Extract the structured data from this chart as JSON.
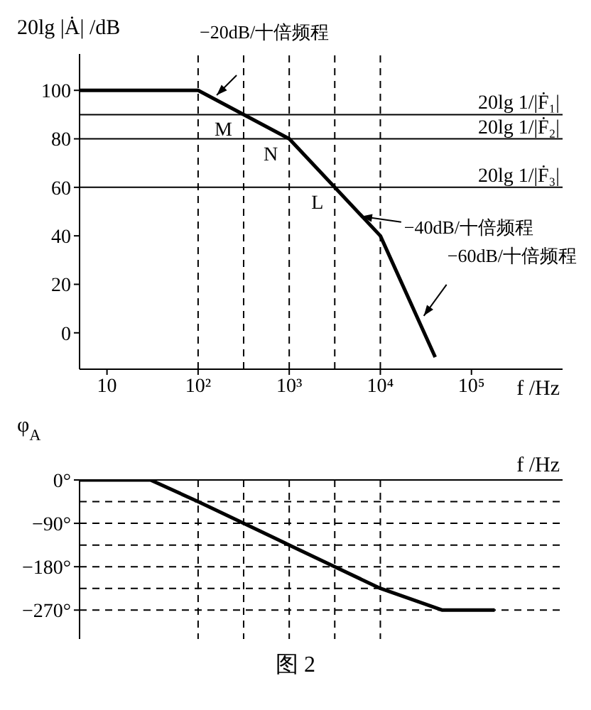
{
  "chart_data": [
    {
      "type": "line",
      "ylabel": "20lg |Ȧ| /dB",
      "xlabel": "f /Hz",
      "log": "x",
      "xlim": [
        5,
        1000000
      ],
      "xticks": [
        10,
        {
          "value": 100,
          "label": "10²"
        },
        {
          "value": 1000,
          "label": "10³"
        },
        {
          "value": 10000,
          "label": "10⁴"
        },
        {
          "value": 100000,
          "label": "10⁵"
        }
      ],
      "ylim": [
        -15,
        115
      ],
      "yticks": [
        0,
        20,
        40,
        60,
        80,
        100
      ],
      "x": [
        5,
        100,
        1000,
        10000,
        40000
      ],
      "series": [
        {
          "color": "#000000",
          "values": [
            100,
            100,
            80,
            40,
            -10
          ]
        }
      ],
      "ref_lines": [
        {
          "axis": "y",
          "value": 90,
          "label": "20lg 1/|Ḟ₁|",
          "color": "#000000",
          "line_style": "solid"
        },
        {
          "axis": "y",
          "value": 80,
          "label": "20lg 1/|Ḟ₂|",
          "color": "#000000",
          "line_style": "solid"
        },
        {
          "axis": "y",
          "value": 60,
          "label": "20lg 1/|Ḟ₃|",
          "color": "#000000",
          "line_style": "solid"
        },
        {
          "axis": "x",
          "value": 100,
          "color": "#000000",
          "line_style": "dashed"
        },
        {
          "axis": "x",
          "value": 316,
          "color": "#000000",
          "line_style": "dashed"
        },
        {
          "axis": "x",
          "value": 1000,
          "color": "#000000",
          "line_style": "dashed"
        },
        {
          "axis": "x",
          "value": 3160,
          "color": "#000000",
          "line_style": "dashed"
        },
        {
          "axis": "x",
          "value": 10000,
          "color": "#000000",
          "line_style": "dashed"
        }
      ],
      "annotations": [
        {
          "text": "−20dB/十倍频程",
          "x": 160,
          "y": 98
        },
        {
          "text": "−40dB/十倍频程",
          "x": 6200,
          "y": 48
        },
        {
          "text": "−60dB/十倍频程",
          "x": 30000,
          "y": 7
        },
        {
          "text": "M",
          "x": 316,
          "y": 90
        },
        {
          "text": "N",
          "x": 1000,
          "y": 80
        },
        {
          "text": "L",
          "x": 3160,
          "y": 60
        }
      ]
    },
    {
      "type": "line",
      "ylabel": "φ$_{A}$",
      "xlabel": "f /Hz",
      "log": "x",
      "tick_labels": "y",
      "xlim": [
        5,
        1000000
      ],
      "ylim": [
        -330,
        0
      ],
      "yticks": [
        {
          "value": 0,
          "label": "0°"
        },
        {
          "value": -90,
          "label": "−90°"
        },
        {
          "value": -180,
          "label": "−180°"
        },
        {
          "value": -270,
          "label": "−270°"
        }
      ],
      "x": [
        5,
        30,
        100,
        316,
        1000,
        3160,
        10000,
        48000,
        180000
      ],
      "series": [
        {
          "color": "#000000",
          "values": [
            0,
            0,
            -45,
            -90,
            -135,
            -180,
            -225,
            -270,
            -270
          ]
        }
      ],
      "ref_lines": [
        {
          "axis": "x",
          "value": 100,
          "color": "#000000",
          "line_style": "dashed"
        },
        {
          "axis": "x",
          "value": 316,
          "color": "#000000",
          "line_style": "dashed"
        },
        {
          "axis": "x",
          "value": 1000,
          "color": "#000000",
          "line_style": "dashed"
        },
        {
          "axis": "x",
          "value": 3160,
          "color": "#000000",
          "line_style": "dashed"
        },
        {
          "axis": "x",
          "value": 10000,
          "color": "#000000",
          "line_style": "dashed"
        },
        {
          "axis": "y",
          "value": -45,
          "color": "#000000",
          "line_style": "dashed"
        },
        {
          "axis": "y",
          "value": -90,
          "color": "#000000",
          "line_style": "dashed"
        },
        {
          "axis": "y",
          "value": -135,
          "color": "#000000",
          "line_style": "dashed"
        },
        {
          "axis": "y",
          "value": -180,
          "color": "#000000",
          "line_style": "dashed"
        },
        {
          "axis": "y",
          "value": -225,
          "color": "#000000",
          "line_style": "dashed"
        },
        {
          "axis": "y",
          "value": -270,
          "color": "#000000",
          "line_style": "dashed"
        }
      ],
      "annotations": [
        "图 2"
      ]
    }
  ]
}
